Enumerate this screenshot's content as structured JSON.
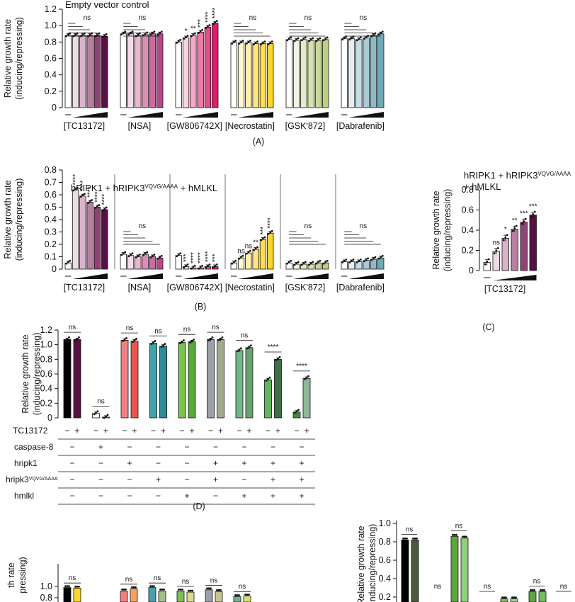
{
  "chart_data": [
    {
      "id": "A",
      "type": "bar",
      "title": "Empty vector control",
      "ylabel": "Relative growth rate (inducing/repressing)",
      "ylim": [
        0,
        1.2
      ],
      "yticks": [
        "0",
        "0.2",
        "0.4",
        "0.6",
        "0.8",
        "1.0",
        "1.2"
      ],
      "caption": "(A)",
      "groups": [
        {
          "label": "[TC13172]",
          "values": [
            0.88,
            0.88,
            0.88,
            0.88,
            0.88,
            0.87
          ],
          "colors": [
            "#ffffff",
            "#eddbe6",
            "#d9b3ca",
            "#b77fa2",
            "#8e4473",
            "#5a0f42"
          ],
          "sig": [
            "",
            "",
            "",
            "",
            "",
            ""
          ],
          "ns": "ns"
        },
        {
          "label": "[NSA]",
          "values": [
            0.9,
            0.9,
            0.88,
            0.89,
            0.9,
            0.9
          ],
          "colors": [
            "#ffffff",
            "#f6dbe8",
            "#ebb6cf",
            "#dc8fb5",
            "#cf6aa0",
            "#b9488b"
          ],
          "sig": [
            "",
            "",
            "",
            "",
            "",
            ""
          ],
          "ns": "ns"
        },
        {
          "label": "[GW806742X]",
          "values": [
            0.8,
            0.85,
            0.88,
            0.92,
            0.98,
            1.03
          ],
          "colors": [
            "#ffffff",
            "#fbd4e2",
            "#f5a8c8",
            "#ef7aa8",
            "#e84b89",
            "#e01d6a"
          ],
          "sig": [
            "",
            "*",
            "**",
            "***",
            "****",
            "****"
          ],
          "ns": ""
        },
        {
          "label": "[Necrostatin]",
          "values": [
            0.79,
            0.79,
            0.79,
            0.78,
            0.78,
            0.78
          ],
          "colors": [
            "#ffffff",
            "#fff6d2",
            "#ffeea8",
            "#ffe57d",
            "#ffdc55",
            "#ffd42c"
          ],
          "sig": [
            "",
            "",
            "",
            "",
            "",
            ""
          ],
          "ns": "ns"
        },
        {
          "label": "[GSK'872]",
          "values": [
            0.83,
            0.82,
            0.83,
            0.82,
            0.82,
            0.83
          ],
          "colors": [
            "#ffffff",
            "#f0f5e0",
            "#e3ecc7",
            "#d6e3ae",
            "#c8da95",
            "#bbd17d"
          ],
          "sig": [
            "",
            "",
            "",
            "",
            "",
            ""
          ],
          "ns": "ns"
        },
        {
          "label": "[Dabrafenib]",
          "values": [
            0.84,
            0.84,
            0.83,
            0.85,
            0.88,
            0.9
          ],
          "colors": [
            "#ffffff",
            "#e2eef1",
            "#c6dde3",
            "#a8cbd5",
            "#8cbac7",
            "#6ea9b9"
          ],
          "sig": [
            "",
            "",
            "",
            "",
            "",
            ""
          ],
          "ns": "ns"
        }
      ]
    },
    {
      "id": "B",
      "type": "bar",
      "title": "hRIPK1 + hRIPK3",
      "title_sup": "VQVG/AAAA",
      "title_tail": " + hMLKL",
      "ylabel": "Relative growth rate (inducing/repressing)",
      "ylim": [
        0,
        0.8
      ],
      "yticks": [
        "0",
        "0.1",
        "0.2",
        "0.3",
        "0.4",
        "0.5",
        "0.6",
        "0.7",
        "0.8"
      ],
      "caption": "(B)",
      "groups": [
        {
          "label": "[TC13172]",
          "values": [
            0.05,
            0.64,
            0.59,
            0.54,
            0.5,
            0.48
          ],
          "colors": [
            "#ffffff",
            "#eddbe6",
            "#d9b3ca",
            "#b77fa2",
            "#8e4473",
            "#5a0f42"
          ],
          "sig": [
            "",
            "****",
            "****",
            "****",
            "****",
            "****"
          ],
          "ns": ""
        },
        {
          "label": "[NSA]",
          "values": [
            0.12,
            0.11,
            0.1,
            0.12,
            0.1,
            0.09
          ],
          "colors": [
            "#ffffff",
            "#f6dbe8",
            "#ebb6cf",
            "#dc8fb5",
            "#cf6aa0",
            "#b9488b"
          ],
          "sig": [
            "",
            "",
            "",
            "",
            "",
            ""
          ],
          "ns": "ns"
        },
        {
          "label": "[GW806742X]",
          "values": [
            0.11,
            0.02,
            0.01,
            0.01,
            0.02,
            0.02
          ],
          "colors": [
            "#ffffff",
            "#fbd4e2",
            "#f5a8c8",
            "#ef7aa8",
            "#e84b89",
            "#e01d6a"
          ],
          "sig": [
            "",
            "***",
            "****",
            "****",
            "****",
            "***"
          ],
          "ns": ""
        },
        {
          "label": "[Necrostatin]",
          "values": [
            0.05,
            0.09,
            0.13,
            0.16,
            0.24,
            0.29
          ],
          "colors": [
            "#ffffff",
            "#fff6d2",
            "#ffeea8",
            "#ffe57d",
            "#ffdc55",
            "#ffd42c"
          ],
          "sig": [
            "",
            "ns",
            "ns",
            "**",
            "***",
            "****"
          ],
          "ns": ""
        },
        {
          "label": "[GSK'872]",
          "values": [
            0.05,
            0.04,
            0.04,
            0.04,
            0.05,
            0.05
          ],
          "colors": [
            "#ffffff",
            "#f0f5e0",
            "#e3ecc7",
            "#d6e3ae",
            "#c8da95",
            "#bbd17d"
          ],
          "sig": [
            "",
            "",
            "",
            "",
            "",
            ""
          ],
          "ns": "ns"
        },
        {
          "label": "[Dabrafenib]",
          "values": [
            0.06,
            0.06,
            0.06,
            0.07,
            0.08,
            0.09
          ],
          "colors": [
            "#ffffff",
            "#e2eef1",
            "#c6dde3",
            "#a8cbd5",
            "#8cbac7",
            "#6ea9b9"
          ],
          "sig": [
            "",
            "",
            "",
            "",
            "",
            ""
          ],
          "ns": "ns"
        }
      ]
    },
    {
      "id": "C",
      "type": "bar",
      "title": "hRIPK1 + hRIPK3",
      "title_sup": "VQVG/AAAA",
      "title_line2": "+ hMLKL",
      "ylabel": "Relative growth rate (inducing/repressing)",
      "ylim": [
        0,
        0.8
      ],
      "yticks": [
        "0",
        "0.2",
        "0.4",
        "0.6",
        "0.8"
      ],
      "caption": "(C)",
      "groups": [
        {
          "label": "[TC13172]",
          "values": [
            0.08,
            0.19,
            0.32,
            0.41,
            0.48,
            0.55
          ],
          "colors": [
            "#ffffff",
            "#eddbe6",
            "#d9b3ca",
            "#b77fa2",
            "#8e4473",
            "#5a0f42"
          ],
          "sig": [
            "",
            "ns",
            "*",
            "**",
            "***",
            "***"
          ],
          "ns": ""
        }
      ]
    },
    {
      "id": "D",
      "type": "bar",
      "ylabel": "Relative growth rate (inducing/repressing)",
      "ylim": [
        0,
        1.2
      ],
      "yticks": [
        "0",
        "0.2",
        "0.4",
        "0.6",
        "0.8",
        "1.0",
        "1.2"
      ],
      "caption": "(D)",
      "pairs": [
        {
          "values": [
            1.07,
            1.07
          ],
          "colors": [
            "#000000",
            "#5a0f42"
          ],
          "sig": "ns"
        },
        {
          "values": [
            0.06,
            0.01
          ],
          "colors": [
            "#ffffff",
            "#ffffff"
          ],
          "sig": "ns"
        },
        {
          "values": [
            1.06,
            1.05
          ],
          "colors": [
            "#f08080",
            "#e8574f"
          ],
          "sig": "ns"
        },
        {
          "values": [
            1.02,
            0.98
          ],
          "colors": [
            "#43a1a9",
            "#2e8c94"
          ],
          "sig": "ns"
        },
        {
          "values": [
            1.03,
            1.04
          ],
          "colors": [
            "#7bc24f",
            "#5aa83a"
          ],
          "sig": "ns"
        },
        {
          "values": [
            1.07,
            1.07
          ],
          "colors": [
            "#9aa0a6",
            "#a3a98c"
          ],
          "sig": "ns"
        },
        {
          "values": [
            0.92,
            0.96
          ],
          "colors": [
            "#72b58a",
            "#6aa16e"
          ],
          "sig": "ns"
        },
        {
          "values": [
            0.52,
            0.8
          ],
          "colors": [
            "#5fb95c",
            "#3f6f45"
          ],
          "sig": "****"
        },
        {
          "values": [
            0.08,
            0.54
          ],
          "colors": [
            "#3b8f3a",
            "#8fb89a"
          ],
          "sig": "****"
        }
      ],
      "table": {
        "rows": [
          {
            "label": "TC13172",
            "cells": [
              "−",
              "+",
              "−",
              "+",
              "−",
              "+",
              "−",
              "+",
              "−",
              "+",
              "−",
              "+",
              "−",
              "+",
              "−",
              "+",
              "−",
              "+"
            ]
          },
          {
            "label": "caspase-8",
            "cells": [
              "−",
              "+",
              "−",
              "−",
              "−",
              "−",
              "−",
              "−",
              "−"
            ]
          },
          {
            "label": "hripk1",
            "cells": [
              "−",
              "−",
              "+",
              "−",
              "−",
              "+",
              "+",
              "+",
              "+"
            ]
          },
          {
            "label": "hripk3",
            "label_sup": "VQVG/AAAA",
            "cells": [
              "−",
              "−",
              "−",
              "+",
              "−",
              "+",
              "−",
              "+",
              "+"
            ]
          },
          {
            "label": "hmlkl",
            "cells": [
              "−",
              "−",
              "−",
              "−",
              "+",
              "−",
              "+",
              "+",
              "+"
            ]
          }
        ]
      }
    },
    {
      "id": "E",
      "type": "bar",
      "ylabel_partial": "th rate",
      "ylabel_partial2": "pressing)",
      "yticks": [
        "1.0",
        "0.8"
      ],
      "pairs": [
        {
          "values": [
            0.98,
            0.97
          ],
          "colors": [
            "#000000",
            "#ffd42c"
          ],
          "sig": "ns"
        },
        {
          "values": [
            0.92,
            0.96
          ],
          "colors": [
            "#f08080",
            "#f4a460"
          ],
          "sig": "ns"
        },
        {
          "values": [
            0.98,
            0.92
          ],
          "colors": [
            "#43a1a9",
            "#9fbf8f"
          ],
          "sig": "ns"
        },
        {
          "values": [
            0.92,
            0.9
          ],
          "colors": [
            "#7bc24f",
            "#d9d98c"
          ],
          "sig": "ns"
        },
        {
          "values": [
            0.94,
            0.91
          ],
          "colors": [
            "#9aa0a6",
            "#c7c58c"
          ],
          "sig": "ns"
        },
        {
          "values": [
            0.82,
            0.83
          ],
          "colors": [
            "#72b58a",
            "#d8e070"
          ],
          "sig": "ns"
        }
      ]
    },
    {
      "id": "F",
      "type": "bar",
      "ylabel": "Relative growth rate (inducing/repressing)",
      "yticks": [
        "0.2",
        "0.4",
        "0.6",
        "0.8",
        "1.0"
      ],
      "pairs": [
        {
          "values": [
            0.82,
            0.82
          ],
          "colors": [
            "#000000",
            "#4a5a3a"
          ],
          "sig": "ns"
        },
        {
          "values": [
            0.0,
            0.0
          ],
          "colors": [
            "#ffffff",
            "#ffffff"
          ],
          "sig": "ns"
        },
        {
          "values": [
            0.86,
            0.84
          ],
          "colors": [
            "#5aa83a",
            "#8fd07a"
          ],
          "sig": "ns"
        },
        {
          "values": [
            0.0,
            0.0
          ],
          "colors": [
            "#ffffff",
            "#ffffff"
          ],
          "sig": "ns"
        },
        {
          "values": [
            0.18,
            0.18
          ],
          "colors": [
            "#7bc24f",
            "#9fd08a"
          ],
          "sig": ""
        },
        {
          "values": [
            0.26,
            0.26
          ],
          "colors": [
            "#5aa83a",
            "#6fbf5a"
          ],
          "sig": "ns"
        },
        {
          "values": [
            0.0,
            0.0
          ],
          "colors": [
            "#ffffff",
            "#ffffff"
          ],
          "sig": "ns"
        }
      ]
    }
  ]
}
